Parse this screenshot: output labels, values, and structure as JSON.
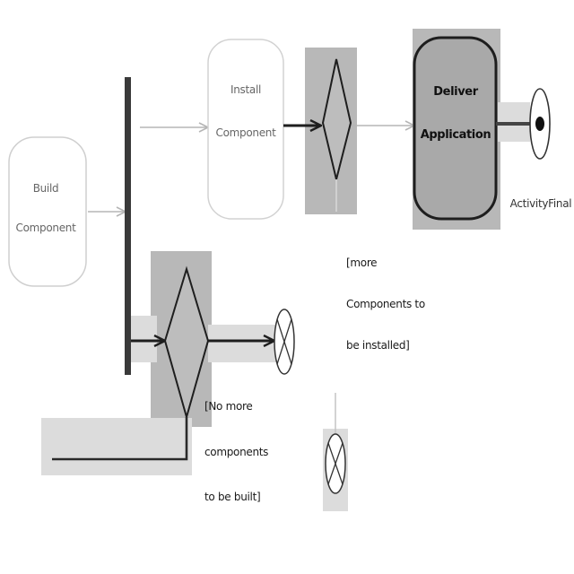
{
  "diagram": {
    "nodes": {
      "build_component": {
        "label_lines": [
          "Build",
          "Component"
        ]
      },
      "install_component": {
        "label_lines": [
          "Install",
          "Component"
        ]
      },
      "deliver_application": {
        "label_lines": [
          "Deliver",
          "Application"
        ]
      },
      "activity_final": {
        "label": "ActivityFinal"
      }
    },
    "guards": {
      "more_components_installed": [
        "[more",
        "Components to",
        "be installed]"
      ],
      "no_more_components_built": [
        "[No more",
        "components",
        "to be built]"
      ]
    }
  },
  "colors": {
    "highlight": "#b8b8b8",
    "deliver_fill": "#a9a9a9",
    "line_dark": "#2a2a2a",
    "line_light": "#bdbdbd"
  }
}
